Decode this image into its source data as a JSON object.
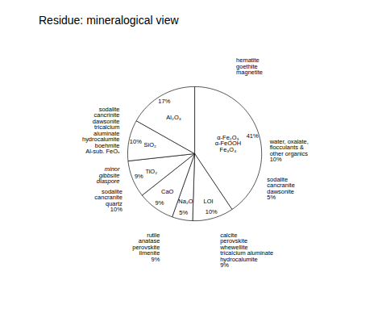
{
  "chart_data": {
    "type": "pie",
    "title": "Residue: mineralogical view",
    "categories": [
      "α-Fe₂O₃\nα-FeOOH\nFe₃O₄",
      "LOI",
      "Na₂O",
      "CaO",
      "TiO₂",
      "SiO₂",
      "Al₂O₃"
    ],
    "values": [
      41,
      10,
      5,
      9,
      9,
      10,
      17
    ],
    "value_labels": [
      "41%",
      "10%",
      "5%",
      "9%",
      "9%",
      "10%",
      "17%"
    ],
    "data_labels": true,
    "colors": [
      "#ffffff",
      "#ffffff",
      "#ffffff",
      "#ffffff",
      "#ffffff",
      "#ffffff",
      "#ffffff"
    ],
    "annotations": [
      "hematite\ngoethite\nmagnetite",
      "water, oxalate,\nflocculants &\nother organics\n10%",
      "sodalite\ncancranite\ndawsonite\n5%",
      "calcite\nperovskite\nwhewellite\ntricalcium aluminate\nhydrocalumite\n9%",
      "rutile\nanatase\nperovskite\nilmenite\n9%",
      "sodalite\ncancranite\nquartz\n10%",
      "sodalite\ncancrinite\ndawsonite\ntricalcium\n    aluminate\nhydrocalumite\nboehmite\nAl-sub. FeOₓ",
      "minor\ngibbsite\ndiaspore"
    ]
  }
}
